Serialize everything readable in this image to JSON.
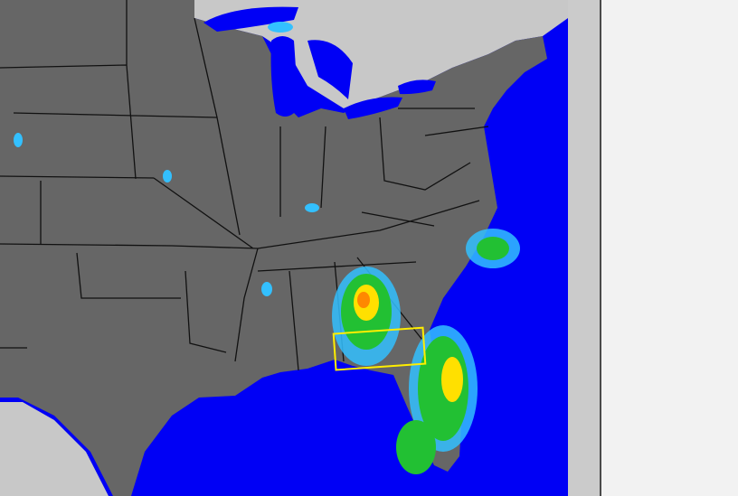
{
  "map": {
    "type": "weather-radar",
    "region": "eastern-united-states",
    "colors": {
      "water": "#0000f5",
      "us_land": "#666666",
      "foreign_land": "#c8c8c8",
      "borders": "#111111",
      "selection_box": "#ffee00",
      "radar_light": "#33c0ff",
      "radar_moderate": "#22c033",
      "radar_heavy": "#ffe000",
      "radar_intense": "#ff8800"
    },
    "selection_box_visible": true
  },
  "side_panel": {
    "color": "#cbcbcb",
    "background": "#f2f2f2"
  }
}
